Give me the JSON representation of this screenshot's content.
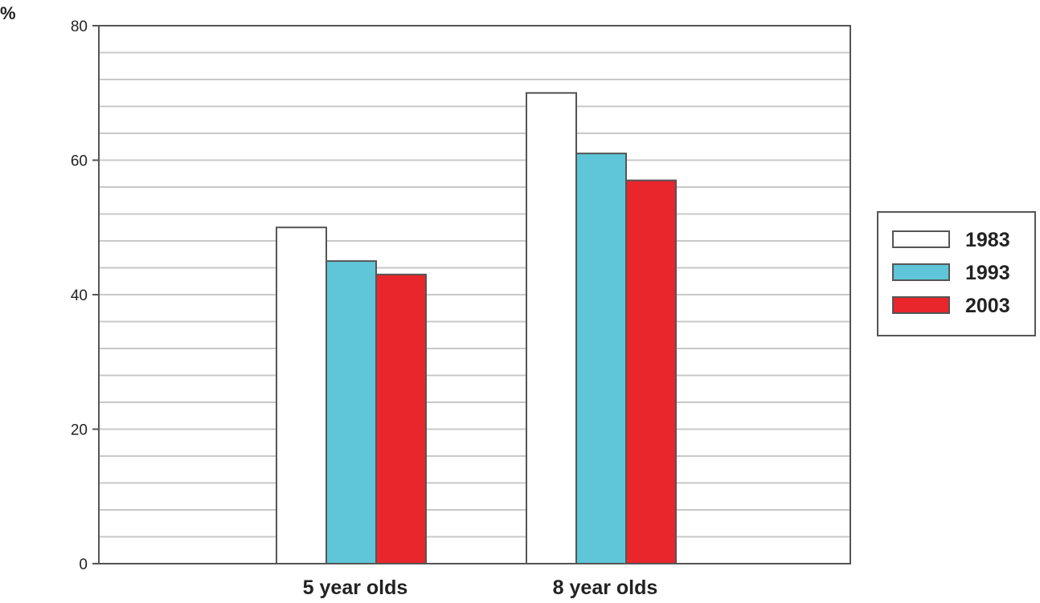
{
  "chart_data": {
    "type": "bar",
    "categories": [
      "5 year olds",
      "8 year olds"
    ],
    "series": [
      {
        "name": "1983",
        "values": [
          50,
          70
        ],
        "color": "#ffffff"
      },
      {
        "name": "1993",
        "values": [
          45,
          61
        ],
        "color": "#5ec6d8"
      },
      {
        "name": "2003",
        "values": [
          43,
          57
        ],
        "color": "#e8262b"
      }
    ],
    "ylabel": "%",
    "ylim": [
      0,
      80
    ],
    "yticks": [
      0,
      20,
      40,
      60,
      80
    ],
    "minor_gridline_step": 4,
    "grid": true,
    "legend_position": "right"
  }
}
